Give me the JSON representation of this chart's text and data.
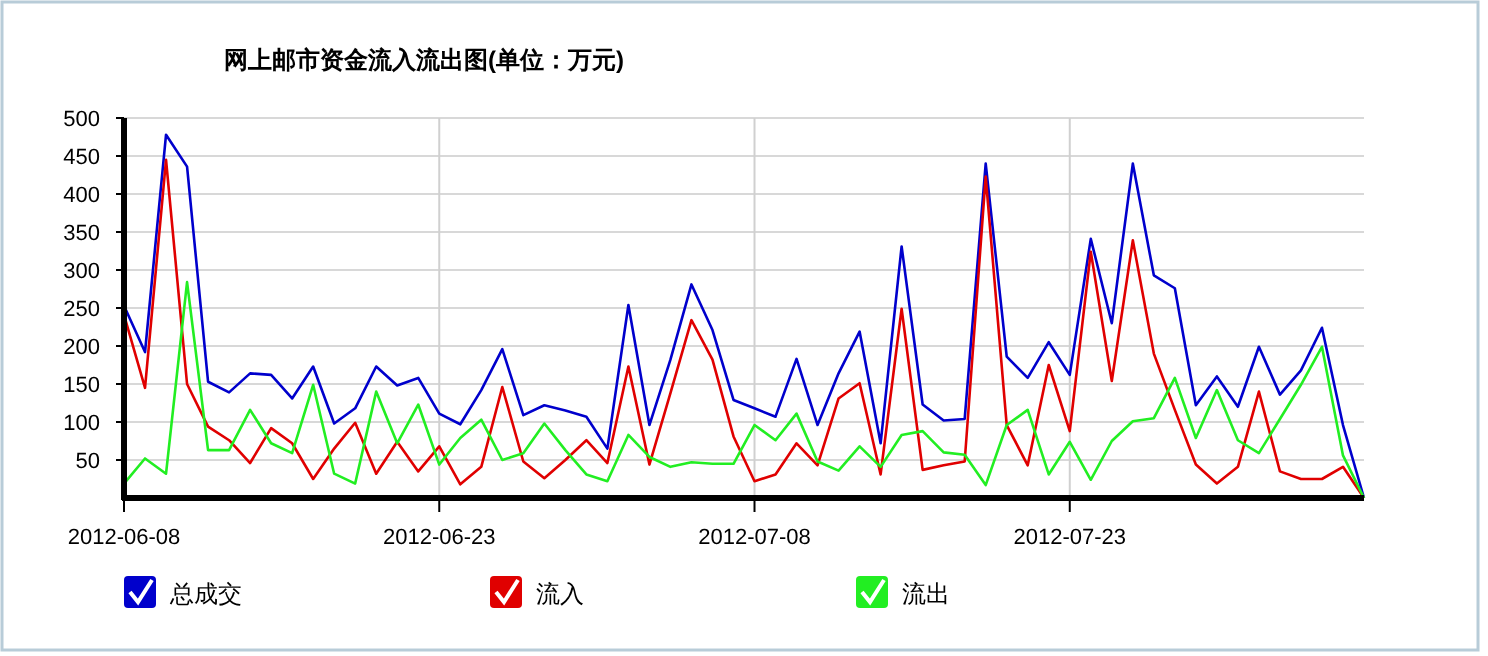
{
  "chart_data": {
    "type": "line",
    "title": "网上邮市资金流入流出图(单位：万元)",
    "x": [
      "2012-06-08",
      "2012-06-09",
      "2012-06-10",
      "2012-06-11",
      "2012-06-12",
      "2012-06-13",
      "2012-06-14",
      "2012-06-15",
      "2012-06-16",
      "2012-06-17",
      "2012-06-18",
      "2012-06-19",
      "2012-06-20",
      "2012-06-21",
      "2012-06-22",
      "2012-06-23",
      "2012-06-24",
      "2012-06-25",
      "2012-06-26",
      "2012-06-27",
      "2012-06-28",
      "2012-06-29",
      "2012-06-30",
      "2012-07-01",
      "2012-07-02",
      "2012-07-03",
      "2012-07-04",
      "2012-07-05",
      "2012-07-06",
      "2012-07-07",
      "2012-07-08",
      "2012-07-09",
      "2012-07-10",
      "2012-07-11",
      "2012-07-12",
      "2012-07-13",
      "2012-07-14",
      "2012-07-15",
      "2012-07-16",
      "2012-07-17",
      "2012-07-18",
      "2012-07-19",
      "2012-07-20",
      "2012-07-21",
      "2012-07-22",
      "2012-07-23",
      "2012-07-24",
      "2012-07-25",
      "2012-07-26",
      "2012-07-27",
      "2012-07-28",
      "2012-07-29",
      "2012-07-30",
      "2012-07-31",
      "2012-08-01",
      "2012-08-02",
      "2012-08-03",
      "2012-08-04",
      "2012-08-05",
      "2012-08-06"
    ],
    "series": [
      {
        "name": "总成交",
        "color": "#0000cc",
        "values": [
          253,
          192,
          478,
          436,
          153,
          139,
          164,
          162,
          131,
          173,
          98,
          118,
          173,
          148,
          158,
          111,
          97,
          142,
          196,
          109,
          122,
          115,
          107,
          65,
          254,
          96,
          182,
          281,
          221,
          129,
          118,
          107,
          183,
          96,
          164,
          219,
          72,
          331,
          123,
          102,
          104,
          440,
          186,
          158,
          205,
          162,
          341,
          230,
          440,
          293,
          276,
          122,
          160,
          120,
          199,
          136,
          168,
          224,
          96,
          0
        ]
      },
      {
        "name": "流入",
        "color": "#e00000",
        "values": [
          241,
          145,
          445,
          150,
          94,
          76,
          46,
          92,
          72,
          25,
          65,
          99,
          32,
          74,
          35,
          68,
          18,
          41,
          146,
          48,
          26,
          50,
          76,
          46,
          173,
          44,
          138,
          234,
          182,
          81,
          22,
          31,
          72,
          43,
          131,
          151,
          31,
          249,
          37,
          43,
          48,
          423,
          96,
          43,
          175,
          88,
          324,
          154,
          339,
          190,
          116,
          44,
          19,
          41,
          140,
          35,
          25,
          25,
          41,
          0
        ]
      },
      {
        "name": "流出",
        "color": "#22ee22",
        "values": [
          19,
          52,
          32,
          284,
          63,
          63,
          116,
          72,
          59,
          149,
          32,
          19,
          140,
          72,
          123,
          44,
          79,
          103,
          50,
          59,
          98,
          63,
          31,
          22,
          83,
          54,
          41,
          47,
          45,
          45,
          96,
          76,
          111,
          48,
          36,
          68,
          41,
          83,
          88,
          60,
          57,
          17,
          96,
          116,
          31,
          74,
          24,
          75,
          101,
          105,
          158,
          79,
          142,
          76,
          59,
          104,
          149,
          199,
          56,
          0
        ]
      }
    ],
    "xlim": [
      "2012-06-08",
      "2012-08-06"
    ],
    "xticks": [
      "2012-06-08",
      "2012-06-23",
      "2012-07-08",
      "2012-07-23"
    ],
    "ylim": [
      0,
      500
    ],
    "yticks": [
      50,
      100,
      150,
      200,
      250,
      300,
      350,
      400,
      450,
      500
    ],
    "grid": true,
    "legend": "bottom"
  }
}
